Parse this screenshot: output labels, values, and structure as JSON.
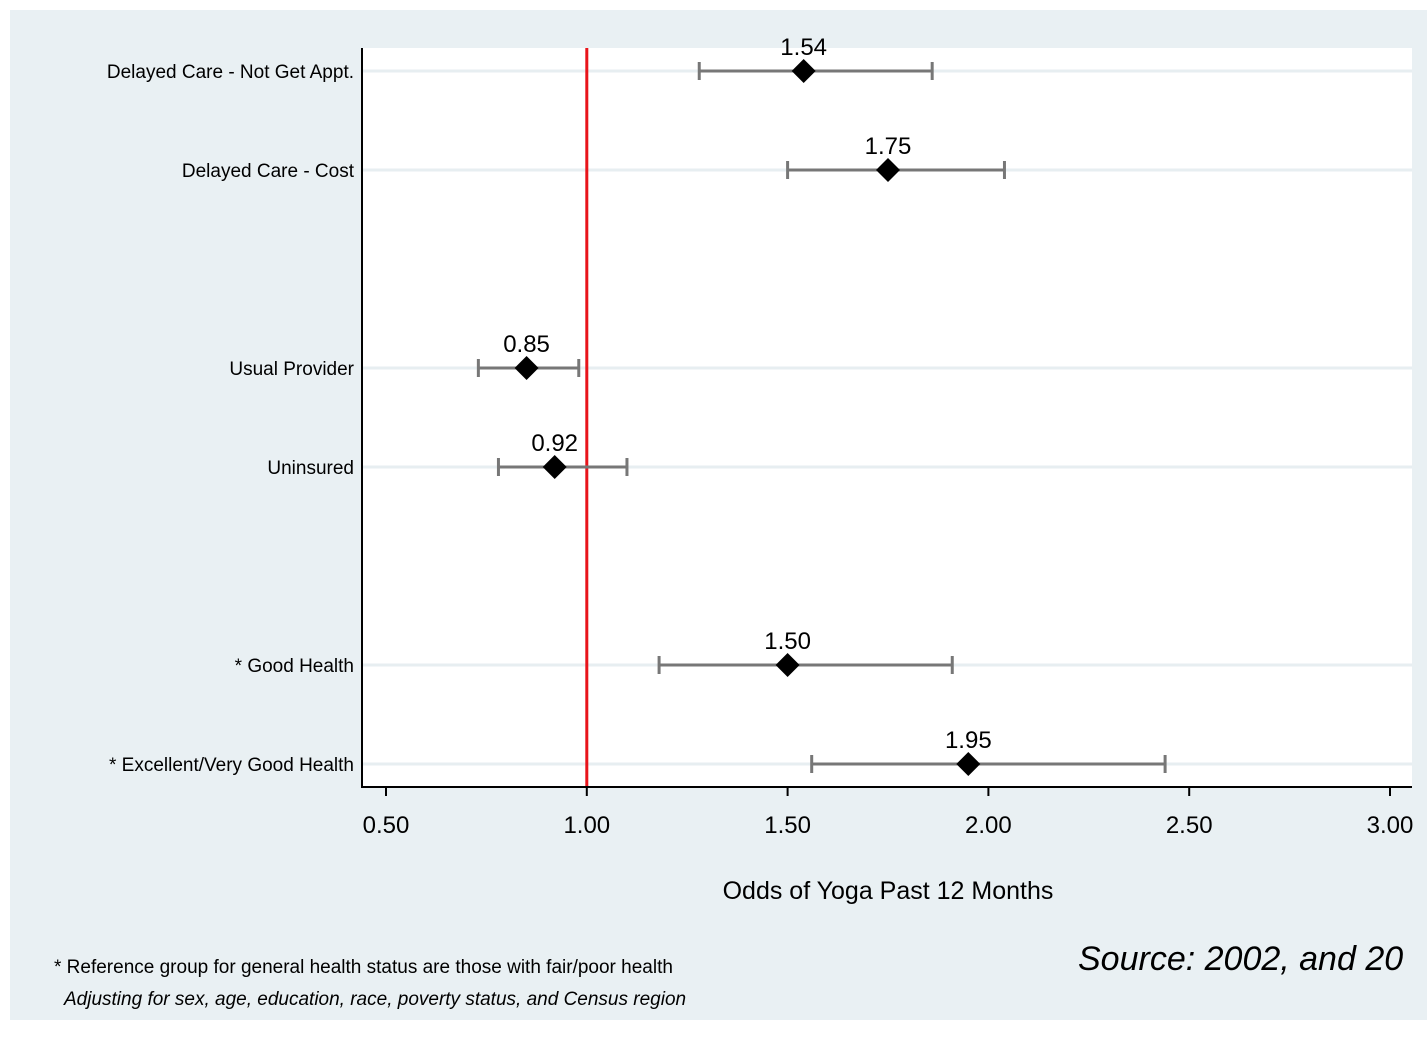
{
  "chart_data": {
    "type": "scatter",
    "subtype": "forest-plot",
    "xlabel": "Odds of Yoga Past 12 Months",
    "xlim": [
      0.5,
      3.0
    ],
    "xticks": [
      "0.50",
      "1.00",
      "1.50",
      "2.00",
      "2.50",
      "3.00"
    ],
    "xtick_values": [
      0.5,
      1.0,
      1.5,
      2.0,
      2.5,
      3.0
    ],
    "reference_line": 1.0,
    "reference_color": "#e8141b",
    "marker": "diamond",
    "marker_color": "#000000",
    "ci_color": "#777777",
    "grid": "horizontal",
    "rows": [
      {
        "label": "Delayed Care - Not Get Appt.",
        "value": 1.54,
        "value_label": "1.54",
        "ci": [
          1.28,
          1.86
        ],
        "slot": 0
      },
      {
        "label": "Delayed Care - Cost",
        "value": 1.75,
        "value_label": "1.75",
        "ci": [
          1.5,
          2.04
        ],
        "slot": 1
      },
      {
        "label": "Usual Provider",
        "value": 0.85,
        "value_label": "0.85",
        "ci": [
          0.73,
          0.98
        ],
        "slot": 3
      },
      {
        "label": "Uninsured",
        "value": 0.92,
        "value_label": "0.92",
        "ci": [
          0.78,
          1.1
        ],
        "slot": 4
      },
      {
        "label": "* Good Health",
        "value": 1.5,
        "value_label": "1.50",
        "ci": [
          1.18,
          1.91
        ],
        "slot": 6
      },
      {
        "label": "* Excellent/Very Good Health",
        "value": 1.95,
        "value_label": "1.95",
        "ci": [
          1.56,
          2.44
        ],
        "slot": 7
      }
    ]
  },
  "footnotes": {
    "reference_note": "* Reference group for general health status are those with fair/poor health",
    "adjustment_note": "Adjusting for sex, age, education, race, poverty status, and Census region",
    "source": "Source:  2002, and 20"
  },
  "colors": {
    "background": "#e9f0f3",
    "plot_background": "#ffffff"
  }
}
